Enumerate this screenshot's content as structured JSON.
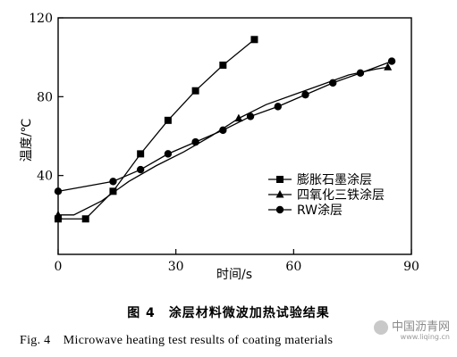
{
  "chart_data": {
    "type": "line",
    "xlabel": "时间/s",
    "ylabel": "温度/℃",
    "xlim": [
      0,
      90
    ],
    "ylim": [
      0,
      120
    ],
    "x_ticks": [
      "0",
      "30",
      "60",
      "90"
    ],
    "y_ticks": [
      "40",
      "80",
      "120"
    ],
    "grid": false,
    "legend_position": "right",
    "series": [
      {
        "name": "膨胀石墨涂层",
        "marker": "square",
        "x": [
          0,
          7,
          14,
          21,
          28,
          35,
          42,
          50
        ],
        "y": [
          18,
          18,
          32,
          51,
          68,
          83,
          96,
          109
        ]
      },
      {
        "name": "四氧化三铁涂层",
        "marker": "triangle",
        "x": [
          0,
          4,
          11,
          18,
          25,
          32,
          39,
          46,
          53,
          60,
          67,
          74,
          81,
          84
        ],
        "y": [
          20,
          20,
          27,
          37,
          45,
          52,
          60,
          69,
          76,
          81,
          86,
          91,
          94,
          95
        ],
        "labelled_x": [
          0,
          46,
          84
        ]
      },
      {
        "name": "RW涂层",
        "marker": "circle",
        "x": [
          0,
          14,
          21,
          28,
          35,
          42,
          49,
          56,
          63,
          70,
          77,
          85
        ],
        "y": [
          32,
          37,
          43,
          51,
          57,
          63,
          70,
          75,
          81,
          87,
          92,
          98
        ]
      }
    ]
  },
  "caption": {
    "zh": "图 4　涂层材料微波加热试验结果",
    "en": "Fig. 4　Microwave heating test results of coating materials"
  },
  "watermark": {
    "text": "中国沥青网",
    "sub": "www.liqing.cn"
  }
}
